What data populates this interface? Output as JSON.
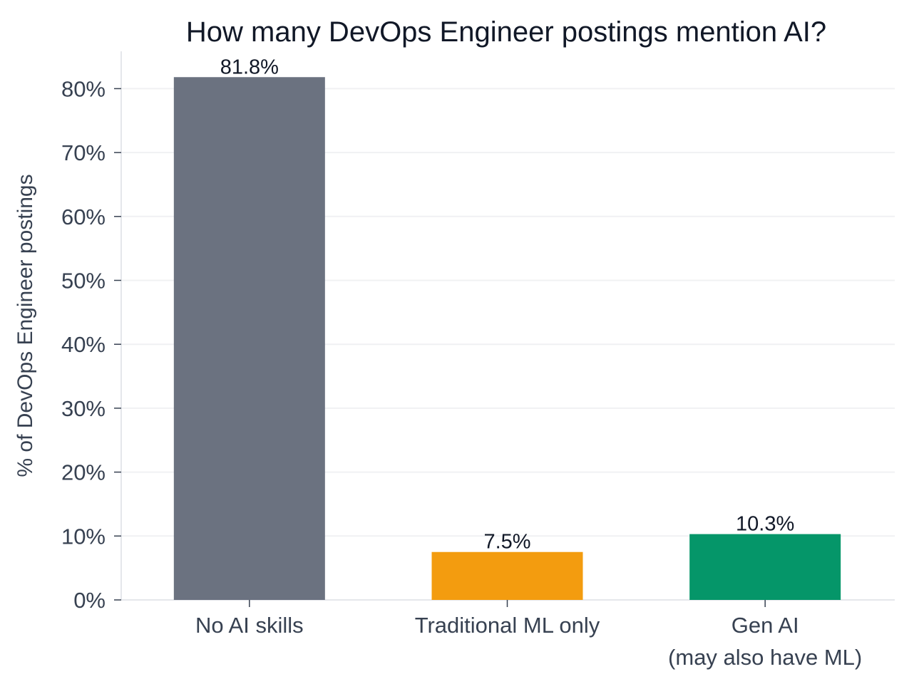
{
  "chart_data": {
    "type": "bar",
    "title": "How many DevOps Engineer postings mention AI?",
    "xlabel": "",
    "ylabel": "% of DevOps Engineer postings",
    "categories": [
      [
        "No AI skills"
      ],
      [
        "Traditional ML only"
      ],
      [
        "Gen AI",
        "(may also have ML)"
      ]
    ],
    "values": [
      81.8,
      7.5,
      10.3
    ],
    "data_labels": [
      "81.8%",
      "7.5%",
      "10.3%"
    ],
    "colors": [
      "#6b7280",
      "#f39c0f",
      "#059669"
    ],
    "ylim": [
      0,
      86
    ],
    "yticks": [
      0,
      10,
      20,
      30,
      40,
      50,
      60,
      70,
      80
    ],
    "ytick_labels": [
      "0%",
      "10%",
      "20%",
      "30%",
      "40%",
      "50%",
      "60%",
      "70%",
      "80%"
    ],
    "grid": "horizontal",
    "legend": "none"
  }
}
